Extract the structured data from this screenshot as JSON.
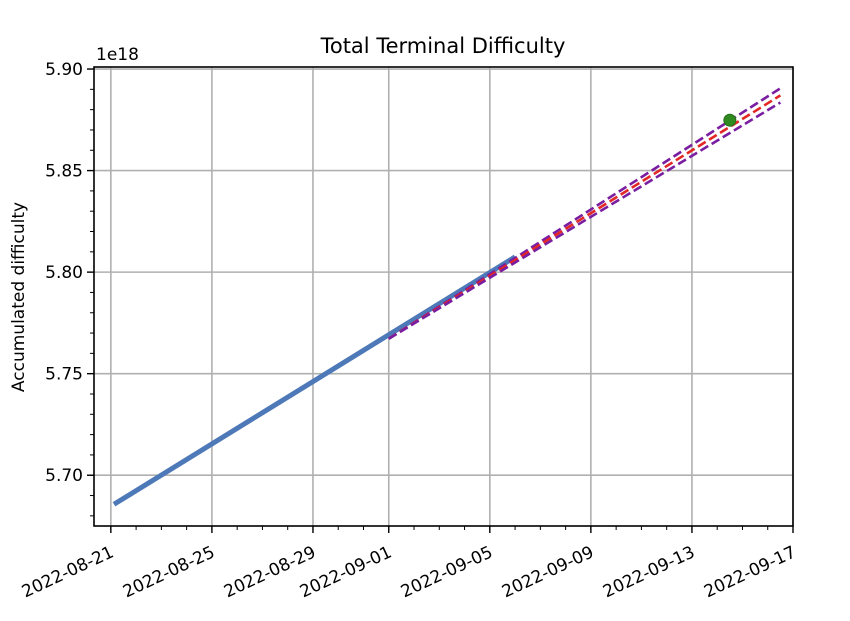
{
  "chart_data": {
    "type": "line",
    "title": "Total Terminal Difficulty",
    "xlabel": "",
    "ylabel": "Accumulated difficulty",
    "y_offset_label": "1e18",
    "x_axis_type": "date",
    "xlim": [
      "2022-08-20T08:00",
      "2022-09-17T00:00"
    ],
    "ylim": [
      5.675,
      5.901
    ],
    "x_ticks": [
      "2022-08-21",
      "2022-08-25",
      "2022-08-29",
      "2022-09-01",
      "2022-09-05",
      "2022-09-09",
      "2022-09-13",
      "2022-09-17"
    ],
    "y_ticks": [
      "5.70",
      "5.75",
      "5.80",
      "5.85",
      "5.90"
    ],
    "grid": true,
    "series": [
      {
        "style": "solid",
        "color": "#4e79b8",
        "x": [
          "2022-08-21T03:00",
          "2022-09-06T00:00"
        ],
        "y": [
          5.6857,
          5.8075
        ]
      },
      {
        "style": "dashed",
        "color": "#7a1ea1",
        "x": [
          "2022-09-01T00:00",
          "2022-09-16T12:00"
        ],
        "y": [
          5.7672,
          5.8905
        ]
      },
      {
        "style": "dashed",
        "color": "#e32626",
        "x": [
          "2022-09-01T00:00",
          "2022-09-16T12:00"
        ],
        "y": [
          5.7672,
          5.887
        ]
      },
      {
        "style": "dashed",
        "color": "#7a1ea1",
        "x": [
          "2022-09-01T00:00",
          "2022-09-16T12:00"
        ],
        "y": [
          5.7672,
          5.8835
        ]
      }
    ],
    "marker": {
      "color": "#2f8a1f",
      "x": "2022-09-14T12:00",
      "y": 5.8748
    }
  }
}
